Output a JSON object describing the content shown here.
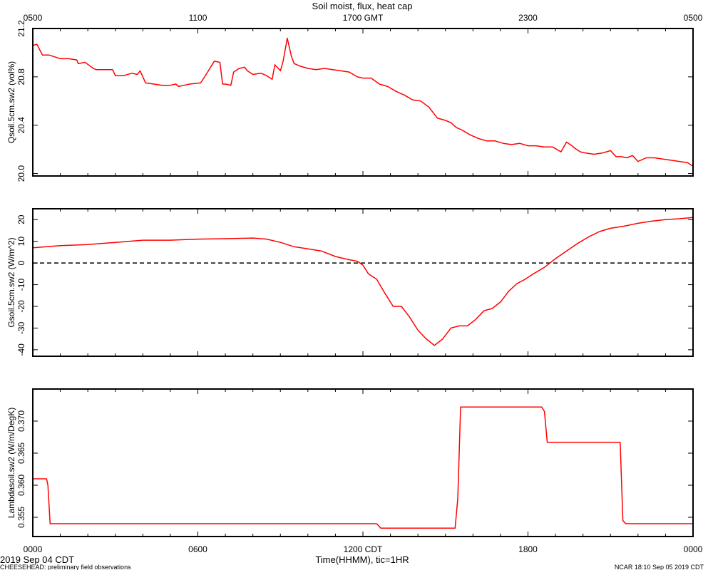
{
  "figure": {
    "title": "Soil moist, flux, heat cap",
    "top_axis_labels": [
      "0500",
      "1100",
      "1700 GMT",
      "2300",
      "0500"
    ],
    "bottom_axis_labels": [
      "0000",
      "0600",
      "1200 CDT",
      "1800",
      "0000"
    ],
    "xlabel": "Time(HHMM), tic=1HR",
    "date_label": "2019 Sep 04 CDT",
    "footer_left": "CHEESEHEAD: preliminary field observations",
    "footer_right": "NCAR 18:10 Sep 05 2019 CDT",
    "line_color": "#ff0000"
  },
  "chart_data": [
    {
      "type": "line",
      "ylabel": "Qsoil.5cm.sw2 (vol%)",
      "xlim": [
        0,
        24
      ],
      "ylim": [
        19.98,
        21.2
      ],
      "yticks": [
        20.0,
        20.4,
        20.8,
        21.2
      ],
      "ytick_labels": [
        "20.0",
        "20.4",
        "20.8",
        "21.2"
      ],
      "x": [
        0,
        0.15,
        0.35,
        0.6,
        1.0,
        1.3,
        1.6,
        1.65,
        1.9,
        2.2,
        2.3,
        2.6,
        2.9,
        3.0,
        3.3,
        3.6,
        3.8,
        3.9,
        4.1,
        4.4,
        4.7,
        5.0,
        5.2,
        5.3,
        5.5,
        5.7,
        6.1,
        6.3,
        6.6,
        6.8,
        6.9,
        7.0,
        7.2,
        7.3,
        7.5,
        7.7,
        7.8,
        8.0,
        8.3,
        8.5,
        8.7,
        8.8,
        9.0,
        9.1,
        9.25,
        9.4,
        9.5,
        9.7,
        10.0,
        10.3,
        10.6,
        10.9,
        11.2,
        11.5,
        11.8,
        12.0,
        12.3,
        12.6,
        12.9,
        13.2,
        13.5,
        13.8,
        14.1,
        14.4,
        14.7,
        15.0,
        15.2,
        15.4,
        15.6,
        15.9,
        16.2,
        16.5,
        16.8,
        17.1,
        17.4,
        17.7,
        18.0,
        18.3,
        18.6,
        18.9,
        19.2,
        19.4,
        19.6,
        19.7,
        19.9,
        20.1,
        20.4,
        20.7,
        21.0,
        21.2,
        21.4,
        21.6,
        21.8,
        22.0,
        22.3,
        22.6,
        22.9,
        23.2,
        23.5,
        23.8,
        24.0
      ],
      "y": [
        21.06,
        21.07,
        20.98,
        20.98,
        20.95,
        20.95,
        20.94,
        20.91,
        20.92,
        20.87,
        20.86,
        20.86,
        20.86,
        20.81,
        20.81,
        20.83,
        20.82,
        20.85,
        20.75,
        20.74,
        20.73,
        20.73,
        20.74,
        20.72,
        20.73,
        20.74,
        20.75,
        20.82,
        20.93,
        20.92,
        20.74,
        20.74,
        20.73,
        20.84,
        20.87,
        20.88,
        20.85,
        20.82,
        20.83,
        20.81,
        20.78,
        20.9,
        20.85,
        20.93,
        21.12,
        20.97,
        20.91,
        20.89,
        20.87,
        20.86,
        20.87,
        20.86,
        20.85,
        20.84,
        20.8,
        20.79,
        20.79,
        20.74,
        20.72,
        20.68,
        20.65,
        20.61,
        20.6,
        20.55,
        20.46,
        20.44,
        20.42,
        20.38,
        20.36,
        20.32,
        20.29,
        20.27,
        20.27,
        20.25,
        20.24,
        20.25,
        20.23,
        20.23,
        20.22,
        20.22,
        20.18,
        20.26,
        20.23,
        20.21,
        20.18,
        20.17,
        20.16,
        20.17,
        20.19,
        20.14,
        20.14,
        20.13,
        20.15,
        20.1,
        20.13,
        20.13,
        20.12,
        20.11,
        20.1,
        20.09,
        20.06
      ]
    },
    {
      "type": "line",
      "ylabel": "Gsoil.5cm.sw2 (W/m^2)",
      "xlim": [
        0,
        24
      ],
      "ylim": [
        -43,
        25
      ],
      "yticks": [
        -40,
        -30,
        -20,
        -10,
        0,
        10,
        20
      ],
      "ytick_labels": [
        "-40",
        "-30",
        "-20",
        "-10",
        "0",
        "10",
        "20"
      ],
      "zero_line": true,
      "x": [
        0,
        0.5,
        1.0,
        2.0,
        3.0,
        4.0,
        5.0,
        6.0,
        7.0,
        8.0,
        8.5,
        9.0,
        9.5,
        10.0,
        10.5,
        11.0,
        11.5,
        11.8,
        12.0,
        12.2,
        12.5,
        12.8,
        13.1,
        13.4,
        13.7,
        14.0,
        14.3,
        14.6,
        14.9,
        15.2,
        15.5,
        15.8,
        16.1,
        16.4,
        16.7,
        17.0,
        17.3,
        17.6,
        17.9,
        18.2,
        18.6,
        19.0,
        19.4,
        19.8,
        20.2,
        20.6,
        21.0,
        21.5,
        22.0,
        22.5,
        23.0,
        23.5,
        24.0
      ],
      "y": [
        7,
        7.5,
        8,
        8.5,
        9.5,
        10.5,
        10.5,
        11,
        11.2,
        11.5,
        11,
        9.5,
        7.5,
        6.5,
        5.5,
        3,
        1.5,
        0.8,
        -1,
        -5,
        -7.5,
        -14,
        -20,
        -20,
        -25,
        -31,
        -35,
        -38,
        -35,
        -30,
        -29,
        -29,
        -26,
        -22,
        -21,
        -18,
        -13,
        -9.5,
        -7.5,
        -5,
        -2,
        2,
        5.5,
        9,
        12,
        14.5,
        16,
        17,
        18.3,
        19.3,
        20,
        20.4,
        21
      ]
    },
    {
      "type": "line",
      "ylabel": "Lambdasoil.sw2 (W/m/DegK)",
      "xlim": [
        0,
        24
      ],
      "ylim": [
        0.352,
        0.375
      ],
      "yticks": [
        0.355,
        0.36,
        0.365,
        0.37
      ],
      "ytick_labels": [
        "0.355",
        "0.360",
        "0.365",
        "0.370"
      ],
      "x": [
        0,
        0.5,
        0.55,
        0.63,
        12.5,
        12.65,
        15.35,
        15.45,
        15.55,
        18.5,
        18.6,
        18.7,
        21.35,
        21.45,
        21.55,
        24.0
      ],
      "y": [
        0.361,
        0.361,
        0.36,
        0.354,
        0.354,
        0.3533,
        0.3533,
        0.358,
        0.3722,
        0.3722,
        0.3715,
        0.3667,
        0.3667,
        0.3545,
        0.354,
        0.354
      ]
    }
  ]
}
